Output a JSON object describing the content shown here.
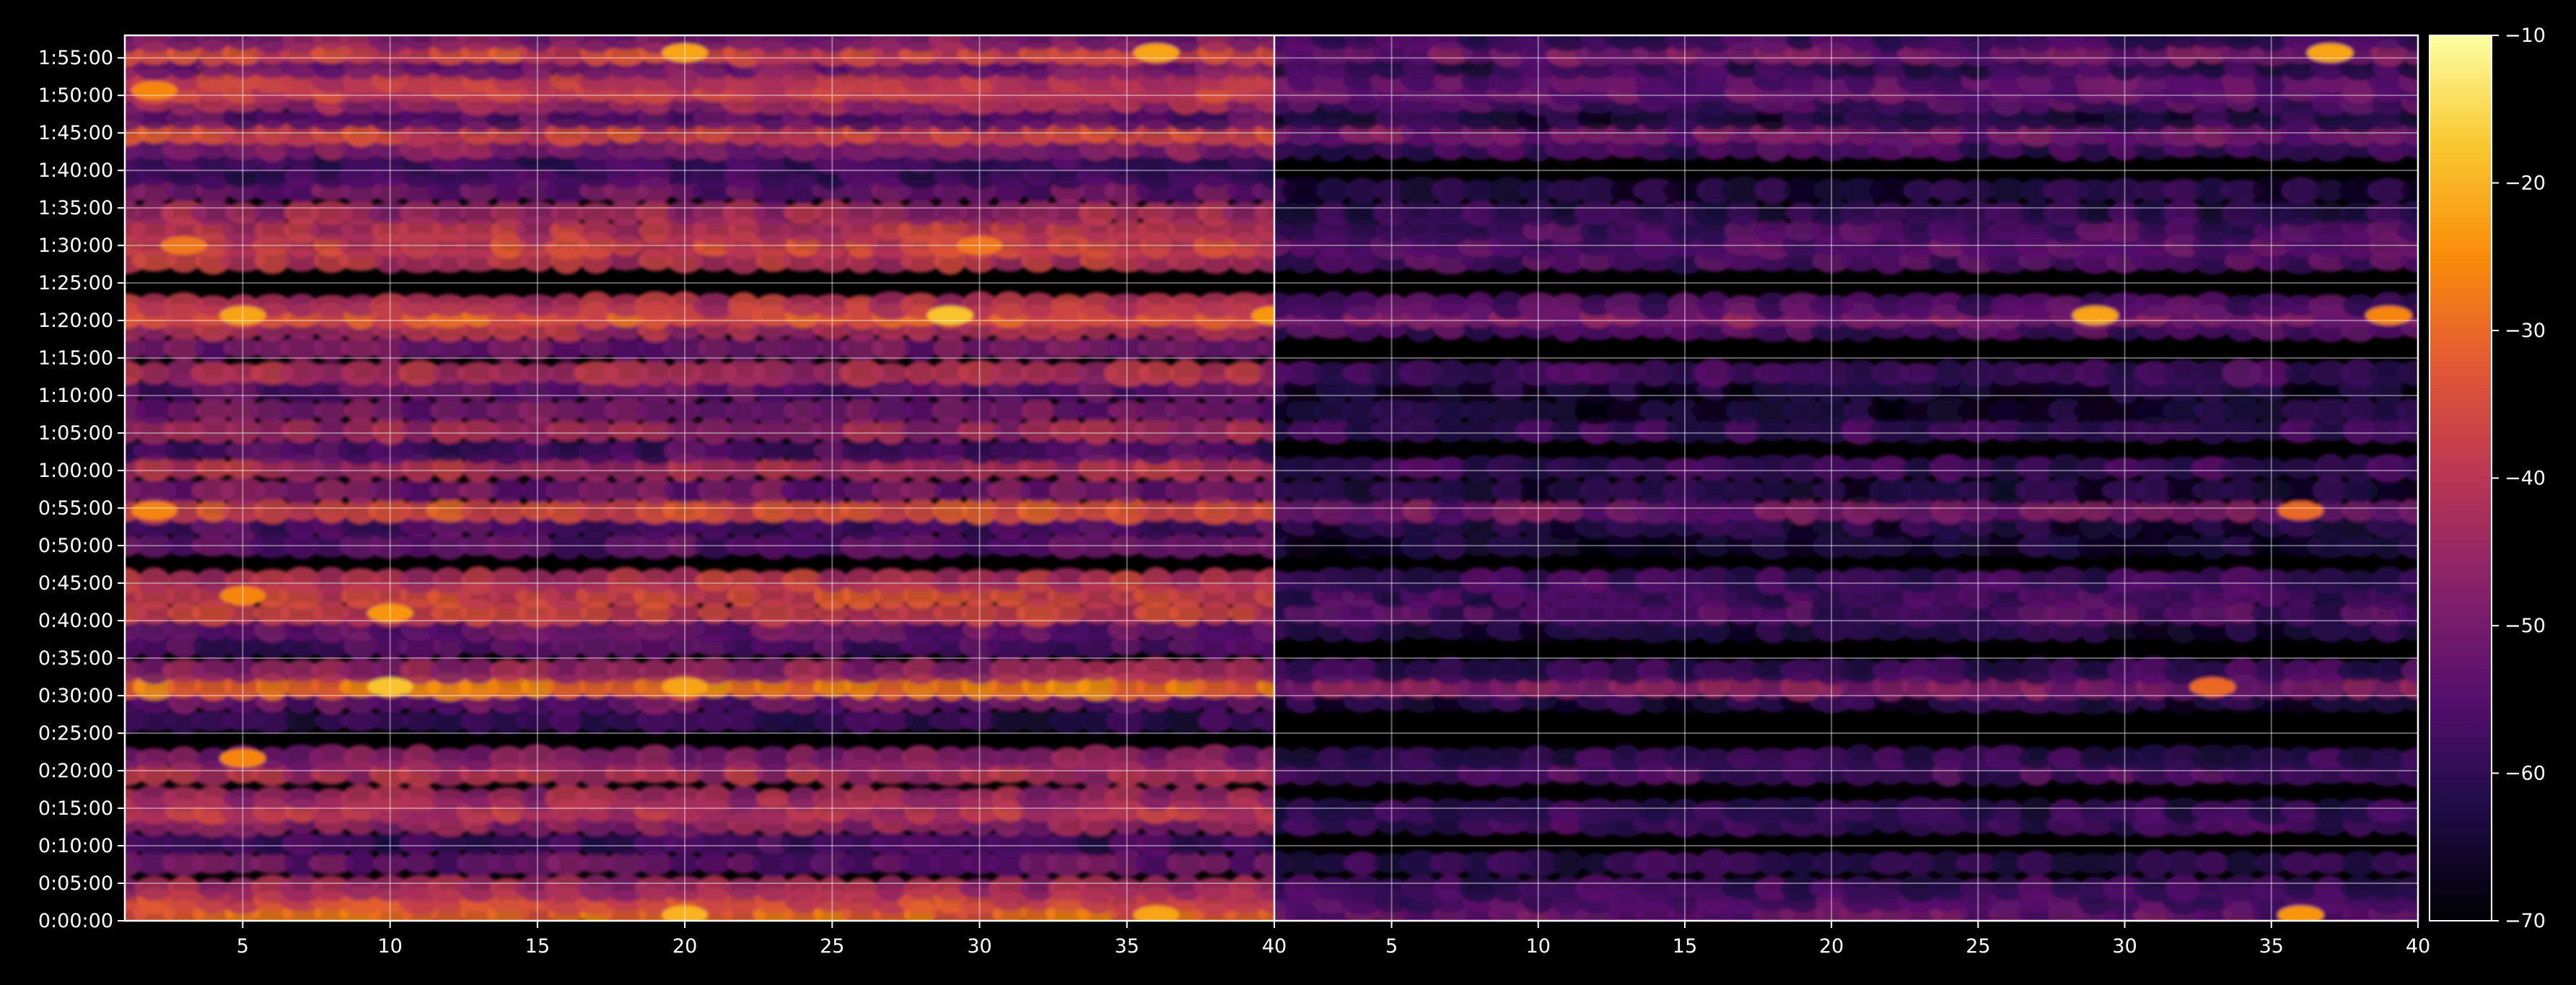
{
  "chart_data": {
    "type": "heatmap",
    "title": "",
    "panels": [
      {
        "name": "left",
        "x_range": [
          1,
          40
        ]
      },
      {
        "name": "right",
        "x_range": [
          1,
          40
        ]
      }
    ],
    "x_ticks": [
      "5",
      "10",
      "15",
      "20",
      "25",
      "30",
      "35",
      "40"
    ],
    "x_tick_values": [
      5,
      10,
      15,
      20,
      25,
      30,
      35,
      40
    ],
    "y_ticks": [
      "0:00:00",
      "0:05:00",
      "0:10:00",
      "0:15:00",
      "0:20:00",
      "0:25:00",
      "0:30:00",
      "0:35:00",
      "0:40:00",
      "0:45:00",
      "0:50:00",
      "0:55:00",
      "1:00:00",
      "1:05:00",
      "1:10:00",
      "1:15:00",
      "1:20:00",
      "1:25:00",
      "1:30:00",
      "1:35:00",
      "1:40:00",
      "1:45:00",
      "1:50:00",
      "1:55:00"
    ],
    "y_tick_seconds": [
      0,
      300,
      600,
      900,
      1200,
      1500,
      1800,
      2100,
      2400,
      2700,
      3000,
      3300,
      3600,
      3900,
      4200,
      4500,
      4800,
      5100,
      5400,
      5700,
      6000,
      6300,
      6600,
      6900
    ],
    "y_range_seconds": [
      0,
      7080
    ],
    "colorbar": {
      "colormap": "inferno",
      "range": [
        -70,
        -10
      ],
      "ticks": [
        "−10",
        "−20",
        "−30",
        "−40",
        "−50",
        "−60",
        "−70"
      ],
      "tick_values": [
        -10,
        -20,
        -30,
        -40,
        -50,
        -60,
        -70
      ]
    },
    "grid": true,
    "bands_left": [
      {
        "t": 60,
        "level": -30
      },
      {
        "t": 160,
        "level": -36
      },
      {
        "t": 260,
        "level": -44
      },
      {
        "t": 460,
        "level": -52
      },
      {
        "t": 620,
        "level": -58
      },
      {
        "t": 780,
        "level": -46
      },
      {
        "t": 880,
        "level": -40
      },
      {
        "t": 980,
        "level": -44
      },
      {
        "t": 1180,
        "level": -42
      },
      {
        "t": 1300,
        "level": -48
      },
      {
        "t": 1600,
        "level": -60
      },
      {
        "t": 1760,
        "level": -52
      },
      {
        "t": 1870,
        "level": -28
      },
      {
        "t": 2000,
        "level": -46
      },
      {
        "t": 2200,
        "level": -56
      },
      {
        "t": 2330,
        "level": -52
      },
      {
        "t": 2460,
        "level": -38
      },
      {
        "t": 2600,
        "level": -36
      },
      {
        "t": 2720,
        "level": -40
      },
      {
        "t": 3000,
        "level": -54
      },
      {
        "t": 3160,
        "level": -56
      },
      {
        "t": 3280,
        "level": -34
      },
      {
        "t": 3440,
        "level": -50
      },
      {
        "t": 3620,
        "level": -42
      },
      {
        "t": 3760,
        "level": -56
      },
      {
        "t": 3920,
        "level": -44
      },
      {
        "t": 4080,
        "level": -50
      },
      {
        "t": 4250,
        "level": -54
      },
      {
        "t": 4380,
        "level": -42
      },
      {
        "t": 4580,
        "level": -50
      },
      {
        "t": 4740,
        "level": -42
      },
      {
        "t": 4840,
        "level": -32
      },
      {
        "t": 4920,
        "level": -40
      },
      {
        "t": 5280,
        "level": -40
      },
      {
        "t": 5400,
        "level": -36
      },
      {
        "t": 5520,
        "level": -40
      },
      {
        "t": 5660,
        "level": -44
      },
      {
        "t": 5840,
        "level": -52
      },
      {
        "t": 5960,
        "level": -58
      },
      {
        "t": 6080,
        "level": -58
      },
      {
        "t": 6180,
        "level": -48
      },
      {
        "t": 6300,
        "level": -36
      },
      {
        "t": 6420,
        "level": -54
      },
      {
        "t": 6550,
        "level": -44
      },
      {
        "t": 6640,
        "level": -38
      },
      {
        "t": 6720,
        "level": -40
      },
      {
        "t": 6830,
        "level": -50
      },
      {
        "t": 6940,
        "level": -36
      },
      {
        "t": 7050,
        "level": -48
      }
    ],
    "bands_right": [
      {
        "t": 60,
        "level": -52
      },
      {
        "t": 160,
        "level": -56
      },
      {
        "t": 260,
        "level": -58
      },
      {
        "t": 460,
        "level": -60
      },
      {
        "t": 780,
        "level": -58
      },
      {
        "t": 880,
        "level": -60
      },
      {
        "t": 1180,
        "level": -56
      },
      {
        "t": 1300,
        "level": -60
      },
      {
        "t": 1760,
        "level": -62
      },
      {
        "t": 1870,
        "level": -48
      },
      {
        "t": 2000,
        "level": -58
      },
      {
        "t": 2330,
        "level": -62
      },
      {
        "t": 2460,
        "level": -56
      },
      {
        "t": 2600,
        "level": -58
      },
      {
        "t": 2720,
        "level": -58
      },
      {
        "t": 3000,
        "level": -64
      },
      {
        "t": 3160,
        "level": -62
      },
      {
        "t": 3280,
        "level": -50
      },
      {
        "t": 3440,
        "level": -62
      },
      {
        "t": 3620,
        "level": -58
      },
      {
        "t": 3920,
        "level": -58
      },
      {
        "t": 4080,
        "level": -64
      },
      {
        "t": 4250,
        "level": -64
      },
      {
        "t": 4380,
        "level": -58
      },
      {
        "t": 4740,
        "level": -56
      },
      {
        "t": 4840,
        "level": -48
      },
      {
        "t": 4920,
        "level": -56
      },
      {
        "t": 5280,
        "level": -56
      },
      {
        "t": 5400,
        "level": -54
      },
      {
        "t": 5520,
        "level": -56
      },
      {
        "t": 5660,
        "level": -60
      },
      {
        "t": 5840,
        "level": -62
      },
      {
        "t": 6180,
        "level": -58
      },
      {
        "t": 6300,
        "level": -50
      },
      {
        "t": 6420,
        "level": -62
      },
      {
        "t": 6550,
        "level": -56
      },
      {
        "t": 6640,
        "level": -52
      },
      {
        "t": 6720,
        "level": -54
      },
      {
        "t": 6830,
        "level": -60
      },
      {
        "t": 6940,
        "level": -50
      },
      {
        "t": 7050,
        "level": -58
      }
    ],
    "hotspots_left": [
      {
        "x": 20,
        "t": 45,
        "level": -20
      },
      {
        "x": 36,
        "t": 45,
        "level": -22
      },
      {
        "x": 5,
        "t": 1300,
        "level": -26
      },
      {
        "x": 10,
        "t": 1870,
        "level": -18
      },
      {
        "x": 20,
        "t": 1870,
        "level": -22
      },
      {
        "x": 5,
        "t": 2600,
        "level": -26
      },
      {
        "x": 10,
        "t": 2460,
        "level": -24
      },
      {
        "x": 2,
        "t": 3280,
        "level": -26
      },
      {
        "x": 29,
        "t": 4840,
        "level": -18
      },
      {
        "x": 5,
        "t": 4840,
        "level": -22
      },
      {
        "x": 3,
        "t": 5400,
        "level": -28
      },
      {
        "x": 30,
        "t": 5400,
        "level": -28
      },
      {
        "x": 20,
        "t": 6940,
        "level": -22
      },
      {
        "x": 36,
        "t": 6940,
        "level": -22
      },
      {
        "x": 2,
        "t": 6640,
        "level": -26
      },
      {
        "x": 40,
        "t": 4840,
        "level": -24
      }
    ],
    "hotspots_right": [
      {
        "x": 36,
        "t": 45,
        "level": -24
      },
      {
        "x": 29,
        "t": 4840,
        "level": -22
      },
      {
        "x": 39,
        "t": 4840,
        "level": -26
      },
      {
        "x": 37,
        "t": 6940,
        "level": -22
      },
      {
        "x": 33,
        "t": 1870,
        "level": -30
      },
      {
        "x": 36,
        "t": 3280,
        "level": -30
      }
    ]
  }
}
